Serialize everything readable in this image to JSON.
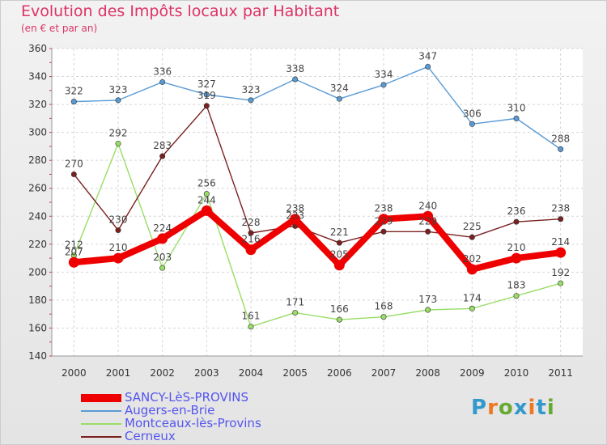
{
  "header": {
    "title": "Evolution des Impôts locaux par Habitant",
    "subtitle": "(en € et par an)"
  },
  "brand": {
    "letters": [
      "P",
      "r",
      "o",
      "x",
      "i",
      "t",
      "i"
    ],
    "colors": [
      "#3399cc",
      "#ee7722",
      "#66aa33",
      "#3399cc",
      "#ee7722",
      "#3399cc",
      "#66aa33"
    ]
  },
  "chart_data": {
    "type": "line",
    "title": "Evolution des Impôts locaux par Habitant",
    "subtitle": "(en € et par an)",
    "xlabel": "",
    "ylabel": "",
    "ylim": [
      140,
      360
    ],
    "yticks": [
      140,
      160,
      180,
      200,
      220,
      240,
      260,
      280,
      300,
      320,
      340,
      360
    ],
    "grid": true,
    "legend_position": "bottom-left",
    "categories": [
      "2000",
      "2001",
      "2002",
      "2003",
      "2004",
      "2005",
      "2006",
      "2007",
      "2008",
      "2009",
      "2010",
      "2011"
    ],
    "series": [
      {
        "name": "Augers-en-Brie",
        "color": "#5b9bd5",
        "values": [
          322,
          323,
          336,
          327,
          323,
          338,
          324,
          334,
          347,
          306,
          310,
          288
        ]
      },
      {
        "name": "Montceaux-lès-Provins",
        "color": "#99dd66",
        "values": [
          212,
          292,
          203,
          256,
          161,
          171,
          166,
          168,
          173,
          174,
          183,
          192
        ]
      },
      {
        "name": "Cerneux",
        "color": "#7a2020",
        "values": [
          270,
          230,
          283,
          319,
          228,
          233,
          221,
          229,
          229,
          225,
          236,
          238
        ]
      },
      {
        "name": "SANCY-LèS-PROVINS",
        "color": "#ee0000",
        "values": [
          207,
          210,
          224,
          244,
          216,
          238,
          205,
          238,
          240,
          202,
          210,
          214
        ]
      }
    ],
    "legend_order": [
      "SANCY-LèS-PROVINS",
      "Augers-en-Brie",
      "Montceaux-lès-Provins",
      "Cerneux"
    ]
  }
}
